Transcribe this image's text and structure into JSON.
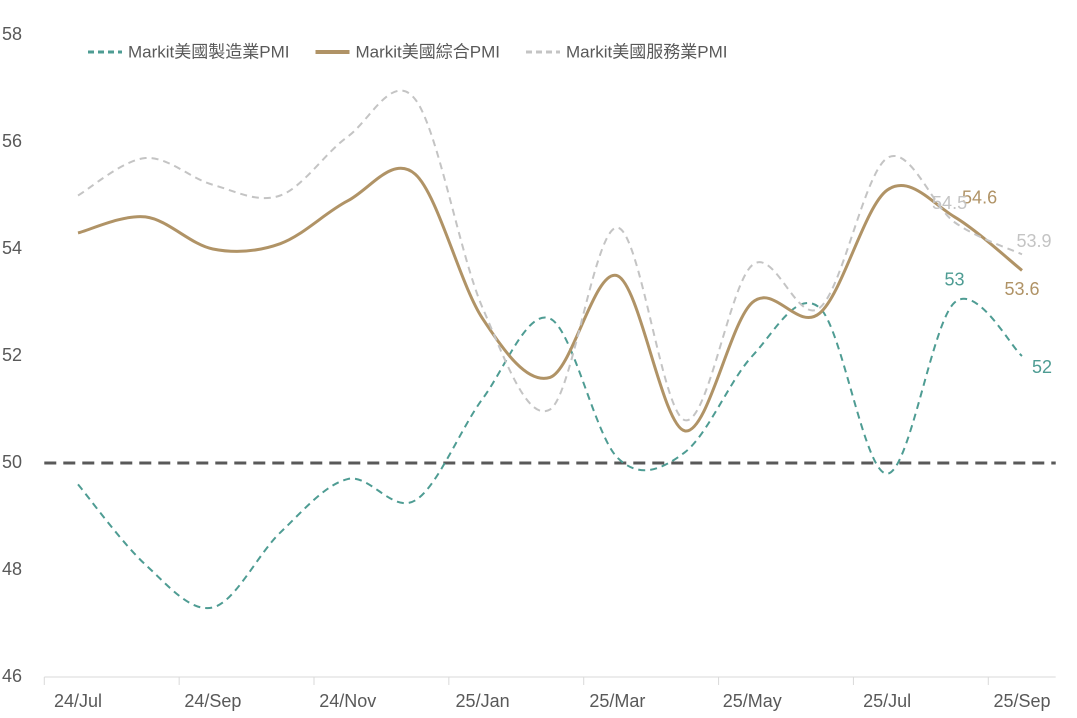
{
  "chart_data": {
    "type": "line",
    "categories": [
      "24/Jul",
      null,
      "24/Sep",
      null,
      "24/Nov",
      null,
      "25/Jan",
      null,
      "25/Mar",
      null,
      "25/May",
      null,
      "25/Jul",
      null,
      "25/Sep"
    ],
    "series": [
      {
        "name": "Markit美國製造業PMI",
        "color": "#4e9c93",
        "dash": true,
        "width": 2,
        "values": [
          49.6,
          48.1,
          47.3,
          48.7,
          49.7,
          49.3,
          51.2,
          52.7,
          50.1,
          50.2,
          52.0,
          52.9,
          49.8,
          53,
          52
        ]
      },
      {
        "name": "Markit美國綜合PMI",
        "color": "#b09366",
        "dash": false,
        "width": 3,
        "values": [
          54.3,
          54.6,
          54.0,
          54.1,
          54.9,
          55.4,
          52.7,
          51.6,
          53.5,
          50.6,
          53.0,
          52.8,
          55.1,
          54.6,
          53.6
        ]
      },
      {
        "name": "Markit美國服務業PMI",
        "color": "#c4c4c4",
        "dash": true,
        "width": 2,
        "values": [
          55.0,
          55.7,
          55.2,
          55.0,
          56.1,
          56.8,
          52.9,
          51.0,
          54.4,
          50.8,
          53.7,
          52.9,
          55.7,
          54.5,
          53.9
        ]
      }
    ],
    "ylim": [
      46,
      58
    ],
    "yticks": [
      46,
      48,
      50,
      52,
      54,
      56,
      58
    ],
    "reference_line": {
      "value": 50,
      "color": "#595959"
    }
  }
}
